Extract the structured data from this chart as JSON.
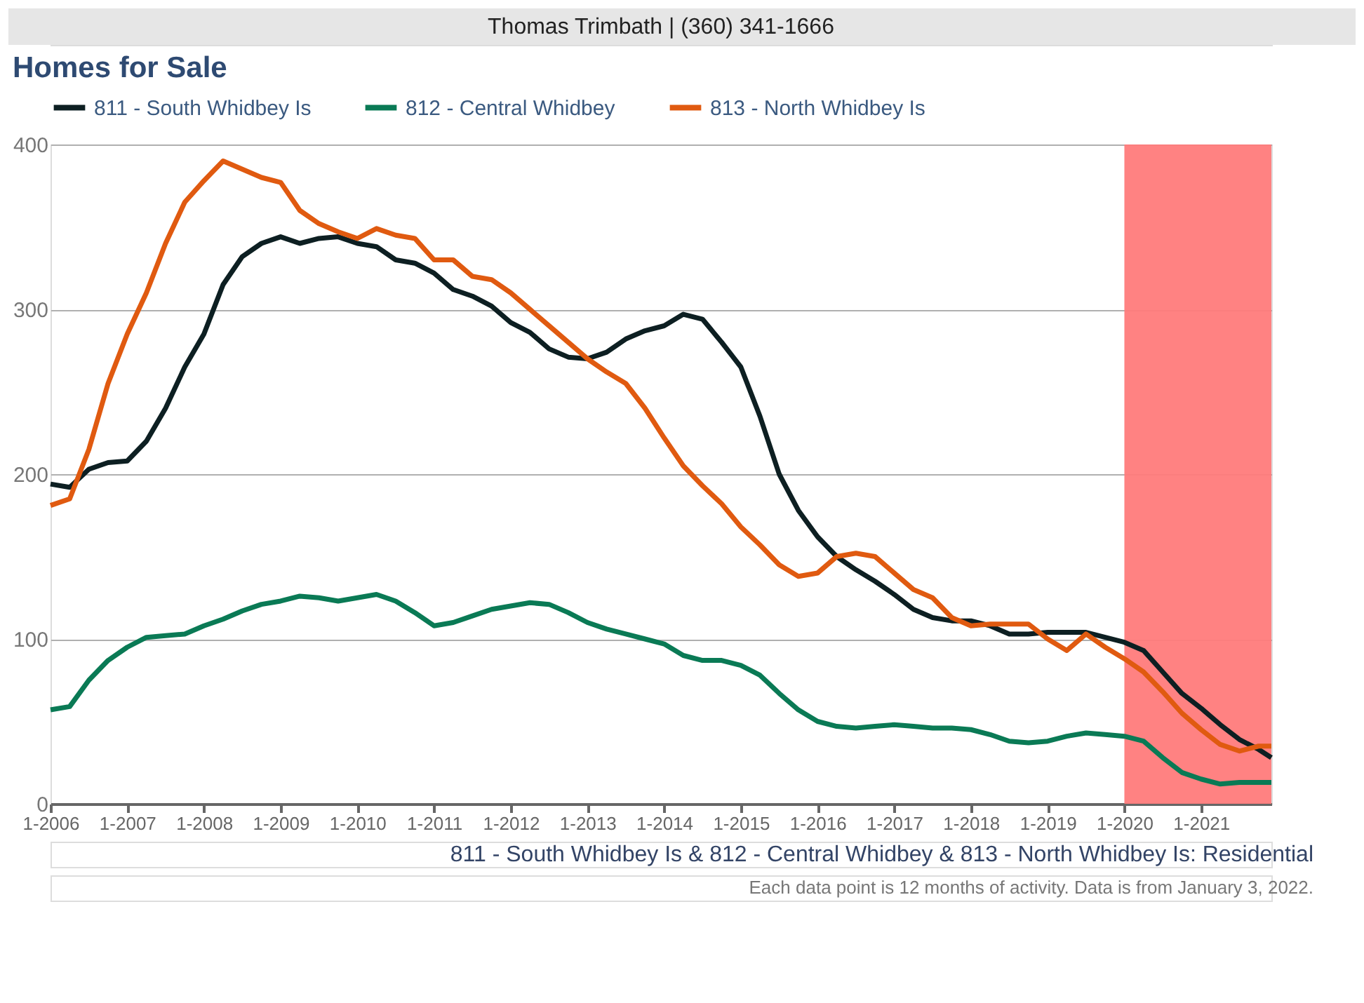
{
  "chart_data": {
    "type": "line",
    "title": "Homes for Sale",
    "annotations": [
      "Thomas Trimbath | (360) 341-1666",
      "811 - South Whidbey Is & 812 - Central Whidbey & 813 - North Whidbey Is: Residential",
      "Each data point is 12 months of activity. Data is from January 3, 2022."
    ],
    "x": [
      "2006-01",
      "2006-04",
      "2006-07",
      "2006-10",
      "2007-01",
      "2007-04",
      "2007-07",
      "2007-10",
      "2008-01",
      "2008-04",
      "2008-07",
      "2008-10",
      "2009-01",
      "2009-04",
      "2009-07",
      "2009-10",
      "2010-01",
      "2010-04",
      "2010-07",
      "2010-10",
      "2011-01",
      "2011-04",
      "2011-07",
      "2011-10",
      "2012-01",
      "2012-04",
      "2012-07",
      "2012-10",
      "2013-01",
      "2013-04",
      "2013-07",
      "2013-10",
      "2014-01",
      "2014-04",
      "2014-07",
      "2014-10",
      "2015-01",
      "2015-04",
      "2015-07",
      "2015-10",
      "2016-01",
      "2016-04",
      "2016-07",
      "2016-10",
      "2017-01",
      "2017-04",
      "2017-07",
      "2017-10",
      "2018-01",
      "2018-04",
      "2018-07",
      "2018-10",
      "2019-01",
      "2019-04",
      "2019-07",
      "2019-10",
      "2020-01",
      "2020-04",
      "2020-07",
      "2020-10",
      "2021-01",
      "2021-04",
      "2021-07",
      "2021-10",
      "2021-12"
    ],
    "series": [
      {
        "name": "811 - South Whidbey Is",
        "color": "#0d1f22",
        "values": [
          194,
          192,
          203,
          207,
          208,
          220,
          240,
          265,
          285,
          315,
          332,
          340,
          344,
          340,
          343,
          344,
          340,
          338,
          330,
          328,
          322,
          312,
          308,
          302,
          292,
          286,
          276,
          271,
          270,
          274,
          282,
          287,
          290,
          297,
          294,
          280,
          265,
          235,
          200,
          178,
          162,
          150,
          142,
          135,
          127,
          118,
          113,
          111,
          111,
          108,
          103,
          103,
          104,
          104,
          104,
          101,
          98,
          93,
          80,
          67,
          58,
          48,
          39,
          33,
          28
        ]
      },
      {
        "name": "812 - Central Whidbey",
        "color": "#0a7a55",
        "values": [
          57,
          59,
          75,
          87,
          95,
          101,
          102,
          103,
          108,
          112,
          117,
          121,
          123,
          126,
          125,
          123,
          125,
          127,
          123,
          116,
          108,
          110,
          114,
          118,
          120,
          122,
          121,
          116,
          110,
          106,
          103,
          100,
          97,
          90,
          87,
          87,
          84,
          78,
          67,
          57,
          50,
          47,
          46,
          47,
          48,
          47,
          46,
          46,
          45,
          42,
          38,
          37,
          38,
          41,
          43,
          42,
          41,
          38,
          28,
          19,
          15,
          12,
          13,
          13,
          13
        ]
      },
      {
        "name": "813 - North Whidbey Is",
        "color": "#e05a10",
        "values": [
          181,
          185,
          215,
          255,
          285,
          310,
          340,
          365,
          378,
          390,
          385,
          380,
          377,
          360,
          352,
          347,
          343,
          349,
          345,
          343,
          330,
          330,
          320,
          318,
          310,
          300,
          290,
          280,
          270,
          262,
          255,
          240,
          222,
          205,
          193,
          182,
          168,
          157,
          145,
          138,
          140,
          150,
          152,
          150,
          140,
          130,
          125,
          113,
          108,
          109,
          109,
          109,
          100,
          93,
          103,
          95,
          88,
          80,
          68,
          55,
          45,
          36,
          32,
          35,
          35
        ]
      }
    ],
    "xlim": [
      "2006-01",
      "2021-12"
    ],
    "xticks": [
      {
        "value": "2006-01",
        "label": "1-2006"
      },
      {
        "value": "2007-01",
        "label": "1-2007"
      },
      {
        "value": "2008-01",
        "label": "1-2008"
      },
      {
        "value": "2009-01",
        "label": "1-2009"
      },
      {
        "value": "2010-01",
        "label": "1-2010"
      },
      {
        "value": "2011-01",
        "label": "1-2011"
      },
      {
        "value": "2012-01",
        "label": "1-2012"
      },
      {
        "value": "2013-01",
        "label": "1-2013"
      },
      {
        "value": "2014-01",
        "label": "1-2014"
      },
      {
        "value": "2015-01",
        "label": "1-2015"
      },
      {
        "value": "2016-01",
        "label": "1-2016"
      },
      {
        "value": "2017-01",
        "label": "1-2017"
      },
      {
        "value": "2018-01",
        "label": "1-2018"
      },
      {
        "value": "2019-01",
        "label": "1-2019"
      },
      {
        "value": "2020-01",
        "label": "1-2020"
      },
      {
        "value": "2021-01",
        "label": "1-2021"
      }
    ],
    "ylim": [
      0,
      400
    ],
    "yticks": [
      0,
      100,
      200,
      300,
      400
    ],
    "bands": [
      {
        "axis": "x",
        "from": "2020-01",
        "to": "2021-12",
        "color": "#ff7b7b"
      }
    ],
    "grid": "y",
    "legend": "top",
    "line_style": "solid",
    "marker": "none"
  }
}
